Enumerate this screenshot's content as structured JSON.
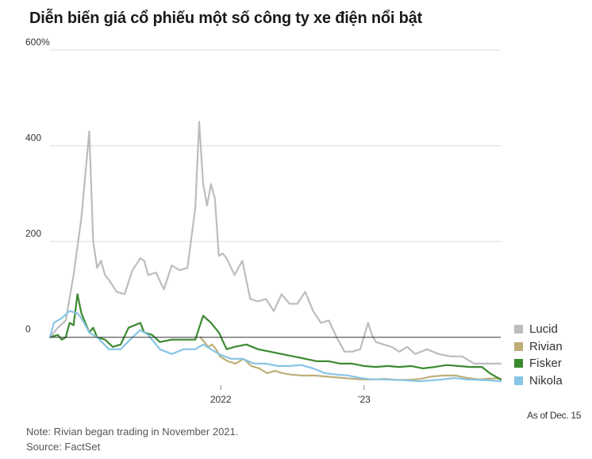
{
  "title": "Diễn biến giá cổ phiếu một số công ty xe điện nổi bật",
  "note": "Note: Rivian began trading in November 2021.",
  "source": "Source: FactSet",
  "as_of": "As of Dec. 15",
  "chart_data": {
    "type": "line",
    "ylim": [
      -100,
      600
    ],
    "yticks": [
      0,
      200,
      400,
      600
    ],
    "ytick_labels": [
      "0",
      "200",
      "400",
      "600%"
    ],
    "xlim": [
      "2020-10-23",
      "2023-12-15"
    ],
    "xticks": [
      "2022-01-01",
      "2023-01-01"
    ],
    "xtick_labels": [
      "2022",
      "’23"
    ],
    "grid": true,
    "legend": "right",
    "series": [
      {
        "name": "Lucid",
        "color": "#bdbdbd",
        "x": [
          "2020-10-23",
          "2020-11-12",
          "2020-12-02",
          "2020-12-22",
          "2021-01-11",
          "2021-01-31",
          "2021-02-10",
          "2021-02-20",
          "2021-03-02",
          "2021-03-12",
          "2021-03-22",
          "2021-04-11",
          "2021-05-01",
          "2021-05-21",
          "2021-06-10",
          "2021-06-20",
          "2021-06-30",
          "2021-07-20",
          "2021-08-09",
          "2021-08-29",
          "2021-09-18",
          "2021-10-08",
          "2021-10-28",
          "2021-11-07",
          "2021-11-17",
          "2021-11-27",
          "2021-12-07",
          "2021-12-17",
          "2021-12-27",
          "2022-01-06",
          "2022-01-16",
          "2022-02-05",
          "2022-02-25",
          "2022-03-17",
          "2022-04-06",
          "2022-04-26",
          "2022-05-16",
          "2022-06-05",
          "2022-06-25",
          "2022-07-15",
          "2022-08-04",
          "2022-08-24",
          "2022-09-13",
          "2022-10-03",
          "2022-10-23",
          "2022-11-12",
          "2022-12-02",
          "2022-12-22",
          "2023-01-11",
          "2023-01-21",
          "2023-01-31",
          "2023-02-20",
          "2023-03-12",
          "2023-04-01",
          "2023-04-21",
          "2023-05-11",
          "2023-06-10",
          "2023-07-10",
          "2023-08-09",
          "2023-09-08",
          "2023-10-08",
          "2023-11-07",
          "2023-12-15"
        ],
        "values": [
          0,
          20,
          35,
          130,
          250,
          430,
          200,
          145,
          160,
          130,
          120,
          95,
          90,
          140,
          165,
          160,
          130,
          135,
          100,
          150,
          140,
          145,
          270,
          450,
          320,
          275,
          320,
          290,
          170,
          175,
          165,
          130,
          160,
          80,
          75,
          80,
          55,
          90,
          70,
          70,
          95,
          55,
          30,
          35,
          0,
          -30,
          -30,
          -25,
          30,
          5,
          -10,
          -15,
          -20,
          -30,
          -20,
          -35,
          -25,
          -35,
          -40,
          -40,
          -55,
          -55,
          -55
        ]
      },
      {
        "name": "Rivian",
        "color": "#bfae78",
        "x": [
          "2021-11-10",
          "2021-11-20",
          "2021-11-30",
          "2021-12-10",
          "2021-12-20",
          "2021-12-30",
          "2022-01-19",
          "2022-02-08",
          "2022-02-28",
          "2022-03-20",
          "2022-04-09",
          "2022-04-29",
          "2022-05-19",
          "2022-06-08",
          "2022-06-28",
          "2022-07-28",
          "2022-08-27",
          "2022-09-26",
          "2022-10-26",
          "2022-11-25",
          "2022-12-25",
          "2023-01-24",
          "2023-02-23",
          "2023-03-25",
          "2023-04-24",
          "2023-05-24",
          "2023-06-23",
          "2023-07-23",
          "2023-08-22",
          "2023-09-21",
          "2023-10-21",
          "2023-11-20",
          "2023-12-15"
        ],
        "values": [
          0,
          -10,
          -20,
          -15,
          -25,
          -40,
          -50,
          -55,
          -45,
          -60,
          -65,
          -75,
          -70,
          -75,
          -78,
          -80,
          -80,
          -82,
          -84,
          -86,
          -88,
          -88,
          -87,
          -89,
          -89,
          -87,
          -82,
          -80,
          -80,
          -85,
          -88,
          -86,
          -86
        ]
      },
      {
        "name": "Fisker",
        "color": "#3b8a30",
        "x": [
          "2020-10-23",
          "2020-11-12",
          "2020-11-22",
          "2020-12-02",
          "2020-12-12",
          "2020-12-22",
          "2021-01-01",
          "2021-01-11",
          "2021-01-31",
          "2021-02-10",
          "2021-02-20",
          "2021-03-12",
          "2021-04-01",
          "2021-04-21",
          "2021-05-11",
          "2021-06-10",
          "2021-06-20",
          "2021-07-10",
          "2021-07-30",
          "2021-08-29",
          "2021-09-28",
          "2021-10-28",
          "2021-11-07",
          "2021-11-17",
          "2021-12-07",
          "2021-12-27",
          "2022-01-16",
          "2022-02-05",
          "2022-03-07",
          "2022-04-06",
          "2022-05-06",
          "2022-06-05",
          "2022-07-05",
          "2022-08-04",
          "2022-09-03",
          "2022-10-03",
          "2022-11-02",
          "2022-12-02",
          "2023-01-01",
          "2023-01-31",
          "2023-03-02",
          "2023-04-01",
          "2023-05-01",
          "2023-05-31",
          "2023-06-30",
          "2023-07-30",
          "2023-08-29",
          "2023-09-28",
          "2023-10-28",
          "2023-11-17",
          "2023-12-15"
        ],
        "values": [
          0,
          5,
          -5,
          0,
          30,
          25,
          90,
          50,
          10,
          20,
          0,
          -5,
          -20,
          -15,
          20,
          30,
          10,
          5,
          -10,
          -5,
          -5,
          -5,
          20,
          45,
          30,
          10,
          -25,
          -20,
          -15,
          -25,
          -30,
          -35,
          -40,
          -45,
          -50,
          -50,
          -55,
          -55,
          -60,
          -62,
          -60,
          -62,
          -60,
          -65,
          -62,
          -58,
          -60,
          -62,
          -62,
          -75,
          -88
        ]
      },
      {
        "name": "Nikola",
        "color": "#88c5e6",
        "x": [
          "2020-10-23",
          "2020-11-02",
          "2020-11-22",
          "2020-12-12",
          "2021-01-01",
          "2021-01-11",
          "2021-01-31",
          "2021-02-20",
          "2021-03-22",
          "2021-04-21",
          "2021-05-21",
          "2021-06-10",
          "2021-06-30",
          "2021-07-30",
          "2021-08-29",
          "2021-09-28",
          "2021-10-28",
          "2021-11-17",
          "2021-12-07",
          "2021-12-27",
          "2022-01-26",
          "2022-02-25",
          "2022-03-27",
          "2022-04-26",
          "2022-05-26",
          "2022-06-25",
          "2022-07-25",
          "2022-08-24",
          "2022-09-23",
          "2022-10-23",
          "2022-11-22",
          "2022-12-22",
          "2023-01-21",
          "2023-02-20",
          "2023-03-22",
          "2023-04-21",
          "2023-05-21",
          "2023-06-20",
          "2023-07-20",
          "2023-08-19",
          "2023-09-18",
          "2023-10-18",
          "2023-11-17",
          "2023-12-15"
        ],
        "values": [
          0,
          30,
          40,
          55,
          50,
          40,
          10,
          0,
          -25,
          -25,
          0,
          15,
          5,
          -25,
          -35,
          -25,
          -25,
          -15,
          -25,
          -35,
          -45,
          -45,
          -55,
          -55,
          -60,
          -60,
          -58,
          -65,
          -75,
          -78,
          -80,
          -85,
          -88,
          -88,
          -89,
          -90,
          -92,
          -90,
          -88,
          -85,
          -88,
          -89,
          -90,
          -92
        ]
      }
    ]
  }
}
